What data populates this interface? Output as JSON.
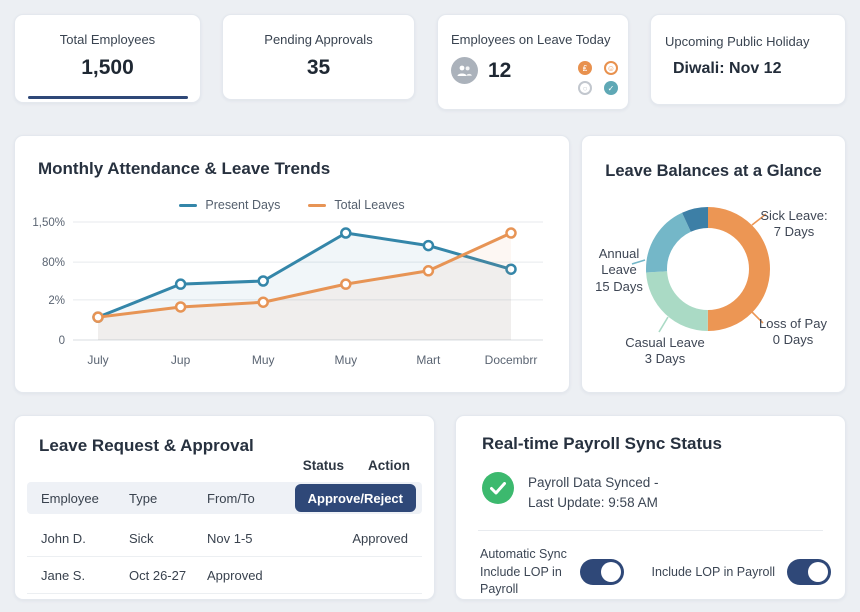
{
  "colors": {
    "navy_accent": "#2F4878",
    "blue_series": "#3486A9",
    "orange_series": "#E79455",
    "mint_slice": "#AADAC5",
    "teal_slice": "#74B7C8",
    "steel_slice": "#3D7FA6",
    "green_ok": "#3CB96E",
    "page_bg": "#ECEFF3"
  },
  "stat_cards": [
    {
      "label": "Total Employees",
      "value": "1,500"
    },
    {
      "label": "Pending Approvals",
      "value": "35"
    },
    {
      "label": "Employees on Leave Today",
      "value": "12"
    },
    {
      "label": "Upcoming Public Holiday",
      "value": "Diwali: Nov 12"
    }
  ],
  "attendance": {
    "title": "Monthly Attendance & Leave Trends",
    "legend": [
      {
        "label": "Present Days",
        "color": "#3486A9"
      },
      {
        "label": "Total Leaves",
        "color": "#E79455"
      }
    ]
  },
  "leave_balances": {
    "title": "Leave Balances at a Glance",
    "callouts": [
      {
        "line1": "Sick Leave:",
        "line2": "7 Days"
      },
      {
        "line1": "Loss of Pay",
        "line2": "0 Days"
      },
      {
        "line1": "Casual Leave",
        "line2": "3 Days"
      },
      {
        "line1": "Annual Leave",
        "line2": "15 Days"
      }
    ]
  },
  "leave_table": {
    "title": "Leave Request & Approval",
    "upper_headers": [
      "Status",
      "Action"
    ],
    "columns": [
      "Employee",
      "Type",
      "From/To"
    ],
    "action_button": "Approve/Reject",
    "rows": [
      {
        "employee": "John D.",
        "type": "Sick",
        "from_to": "Nov 1-5",
        "status": "Approved"
      },
      {
        "employee": "Jane S.",
        "type": "Oct 26-27",
        "from_to": "Approved",
        "status": ""
      }
    ]
  },
  "payroll": {
    "title": "Real-time Payroll Sync Status",
    "status_line1": "Payroll Data Synced -",
    "status_line2": "Last Update: 9:58 AM",
    "toggle1_label_line1": "Automatic Sync",
    "toggle1_label_line2": "Include LOP in Payroll",
    "toggle1_on": true,
    "toggle2_label": "Include LOP in Payroll",
    "toggle2_on": true
  },
  "chart_data": [
    {
      "type": "line",
      "title": "Monthly Attendance & Leave Trends",
      "categories": [
        "July",
        "Jup",
        "Muy",
        "Muy",
        "Mart",
        "Docembrr"
      ],
      "series": [
        {
          "name": "Present Days",
          "color": "#3486A9",
          "values": [
            0.29,
            0.71,
            0.75,
            1.36,
            1.2,
            0.9
          ]
        },
        {
          "name": "Total Leaves",
          "color": "#E79455",
          "values": [
            0.29,
            0.42,
            0.48,
            0.71,
            0.88,
            1.36
          ]
        }
      ],
      "ylim": [
        0,
        1.5
      ],
      "yticks": [
        {
          "label": "1,50%",
          "frac": 0.0
        },
        {
          "label": "80%",
          "frac": 0.34
        },
        {
          "label": "2%",
          "frac": 0.66
        },
        {
          "label": "0",
          "frac": 1.0
        }
      ],
      "grid": true,
      "legend_position": "top-center",
      "area_fill": true
    },
    {
      "type": "pie",
      "title": "Leave Balances at a Glance",
      "donut": true,
      "slices": [
        {
          "label": "Sick Leave",
          "days": 7,
          "sweep_pct": 50,
          "color": "#EC9654"
        },
        {
          "label": "Casual Leave",
          "days": 3,
          "sweep_pct": 24,
          "color": "#AADAC5"
        },
        {
          "label": "Annual Leave",
          "days": 15,
          "sweep_pct": 19,
          "color": "#74B7C8"
        },
        {
          "label": "",
          "days": 0,
          "sweep_pct": 7,
          "color": "#3D7FA6"
        },
        {
          "label": "Loss of Pay",
          "days": 0,
          "sweep_pct": 0,
          "color": "#EC9654"
        }
      ]
    }
  ]
}
